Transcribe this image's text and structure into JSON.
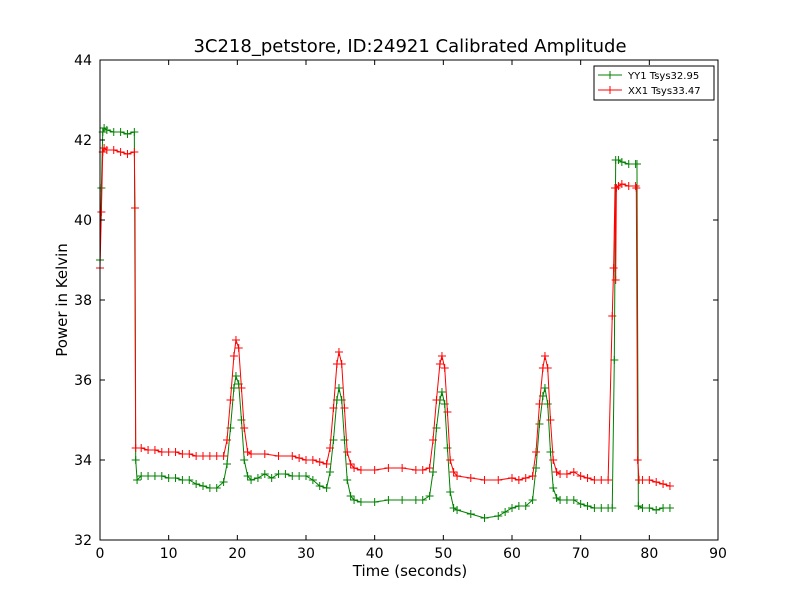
{
  "chart_data": {
    "type": "line",
    "title": "3C218_petstore, ID:24921 Calibrated Amplitude",
    "xlabel": "Time (seconds)",
    "ylabel": "Power in Kelvin",
    "xlim": [
      0,
      90
    ],
    "ylim": [
      32,
      44
    ],
    "xticks": [
      0,
      10,
      20,
      30,
      40,
      50,
      60,
      70,
      80,
      90
    ],
    "yticks": [
      32,
      34,
      36,
      38,
      40,
      42,
      44
    ],
    "grid": false,
    "legend_position": "top-right",
    "marker": "+",
    "series": [
      {
        "name": "YY1 Tsys32.95",
        "color": "#008000",
        "points": [
          [
            0.0,
            39.0
          ],
          [
            0.2,
            40.8
          ],
          [
            0.4,
            42.2
          ],
          [
            0.6,
            42.3
          ],
          [
            1,
            42.25
          ],
          [
            2,
            42.2
          ],
          [
            3,
            42.2
          ],
          [
            4,
            42.15
          ],
          [
            5,
            42.2
          ],
          [
            5.2,
            34.0
          ],
          [
            5.4,
            33.5
          ],
          [
            6,
            33.6
          ],
          [
            7,
            33.6
          ],
          [
            8,
            33.6
          ],
          [
            9,
            33.6
          ],
          [
            10,
            33.55
          ],
          [
            11,
            33.55
          ],
          [
            12,
            33.5
          ],
          [
            13,
            33.5
          ],
          [
            14,
            33.4
          ],
          [
            15,
            33.35
          ],
          [
            16,
            33.3
          ],
          [
            17,
            33.3
          ],
          [
            18,
            33.45
          ],
          [
            18.5,
            33.9
          ],
          [
            19,
            34.8
          ],
          [
            19.5,
            35.8
          ],
          [
            19.8,
            36.1
          ],
          [
            20.2,
            35.9
          ],
          [
            20.6,
            35.0
          ],
          [
            21,
            34.0
          ],
          [
            21.5,
            33.6
          ],
          [
            22,
            33.5
          ],
          [
            23,
            33.55
          ],
          [
            24,
            33.65
          ],
          [
            25,
            33.55
          ],
          [
            26,
            33.65
          ],
          [
            27,
            33.65
          ],
          [
            28,
            33.6
          ],
          [
            29,
            33.6
          ],
          [
            30,
            33.6
          ],
          [
            31,
            33.5
          ],
          [
            32,
            33.35
          ],
          [
            33,
            33.3
          ],
          [
            33.5,
            33.7
          ],
          [
            34,
            34.5
          ],
          [
            34.5,
            35.5
          ],
          [
            34.8,
            35.8
          ],
          [
            35.2,
            35.5
          ],
          [
            35.6,
            34.5
          ],
          [
            36,
            33.5
          ],
          [
            36.5,
            33.1
          ],
          [
            37,
            33.0
          ],
          [
            38,
            32.95
          ],
          [
            40,
            32.95
          ],
          [
            42,
            33.0
          ],
          [
            44,
            33.0
          ],
          [
            46,
            33.0
          ],
          [
            47,
            33.0
          ],
          [
            48,
            33.1
          ],
          [
            48.5,
            33.7
          ],
          [
            49,
            34.8
          ],
          [
            49.5,
            35.5
          ],
          [
            49.8,
            35.7
          ],
          [
            50.2,
            35.4
          ],
          [
            50.6,
            34.3
          ],
          [
            51,
            33.2
          ],
          [
            51.5,
            32.8
          ],
          [
            52,
            32.75
          ],
          [
            54,
            32.65
          ],
          [
            56,
            32.55
          ],
          [
            58,
            32.6
          ],
          [
            59,
            32.7
          ],
          [
            60,
            32.8
          ],
          [
            61,
            32.85
          ],
          [
            62,
            32.85
          ],
          [
            63,
            33.0
          ],
          [
            63.5,
            33.8
          ],
          [
            64,
            34.9
          ],
          [
            64.5,
            35.6
          ],
          [
            64.8,
            35.8
          ],
          [
            65.2,
            35.4
          ],
          [
            65.6,
            34.2
          ],
          [
            66,
            33.3
          ],
          [
            66.5,
            33.05
          ],
          [
            67,
            33.0
          ],
          [
            68,
            33.0
          ],
          [
            69,
            33.0
          ],
          [
            70,
            32.9
          ],
          [
            71,
            32.85
          ],
          [
            72,
            32.8
          ],
          [
            73,
            32.8
          ],
          [
            74,
            32.8
          ],
          [
            74.6,
            32.8
          ],
          [
            74.9,
            36.5
          ],
          [
            75.1,
            41.5
          ],
          [
            75.5,
            41.5
          ],
          [
            76,
            41.45
          ],
          [
            77,
            41.4
          ],
          [
            78,
            41.4
          ],
          [
            78.2,
            41.4
          ],
          [
            78.4,
            32.85
          ],
          [
            79,
            32.8
          ],
          [
            80,
            32.8
          ],
          [
            81,
            32.75
          ],
          [
            82,
            32.8
          ],
          [
            83,
            32.8
          ]
        ]
      },
      {
        "name": "XX1 Tsys33.47",
        "color": "#ff0000",
        "points": [
          [
            0.0,
            38.8
          ],
          [
            0.2,
            40.2
          ],
          [
            0.4,
            41.7
          ],
          [
            0.6,
            41.8
          ],
          [
            1,
            41.75
          ],
          [
            2,
            41.75
          ],
          [
            3,
            41.7
          ],
          [
            4,
            41.65
          ],
          [
            5,
            41.7
          ],
          [
            5.1,
            40.3
          ],
          [
            5.2,
            34.3
          ],
          [
            6,
            34.3
          ],
          [
            7,
            34.25
          ],
          [
            8,
            34.25
          ],
          [
            9,
            34.2
          ],
          [
            10,
            34.2
          ],
          [
            11,
            34.2
          ],
          [
            12,
            34.15
          ],
          [
            13,
            34.15
          ],
          [
            14,
            34.1
          ],
          [
            15,
            34.1
          ],
          [
            16,
            34.1
          ],
          [
            17,
            34.1
          ],
          [
            18,
            34.1
          ],
          [
            18.5,
            34.5
          ],
          [
            19,
            35.5
          ],
          [
            19.5,
            36.6
          ],
          [
            19.8,
            37.0
          ],
          [
            20.2,
            36.8
          ],
          [
            20.6,
            35.8
          ],
          [
            21,
            34.8
          ],
          [
            21.5,
            34.2
          ],
          [
            22,
            34.15
          ],
          [
            24,
            34.15
          ],
          [
            26,
            34.1
          ],
          [
            28,
            34.1
          ],
          [
            29,
            34.05
          ],
          [
            30,
            34.0
          ],
          [
            31,
            34.0
          ],
          [
            32,
            33.95
          ],
          [
            33,
            33.9
          ],
          [
            33.5,
            34.3
          ],
          [
            34,
            35.3
          ],
          [
            34.5,
            36.4
          ],
          [
            34.8,
            36.7
          ],
          [
            35.2,
            36.4
          ],
          [
            35.6,
            35.3
          ],
          [
            36,
            34.2
          ],
          [
            36.5,
            33.9
          ],
          [
            37,
            33.8
          ],
          [
            38,
            33.75
          ],
          [
            40,
            33.75
          ],
          [
            42,
            33.8
          ],
          [
            44,
            33.8
          ],
          [
            46,
            33.75
          ],
          [
            47,
            33.75
          ],
          [
            48,
            33.8
          ],
          [
            48.5,
            34.5
          ],
          [
            49,
            35.5
          ],
          [
            49.5,
            36.4
          ],
          [
            49.8,
            36.6
          ],
          [
            50.2,
            36.3
          ],
          [
            50.6,
            35.2
          ],
          [
            51,
            34.0
          ],
          [
            51.5,
            33.7
          ],
          [
            52,
            33.6
          ],
          [
            54,
            33.55
          ],
          [
            56,
            33.5
          ],
          [
            58,
            33.5
          ],
          [
            60,
            33.55
          ],
          [
            61,
            33.5
          ],
          [
            62,
            33.55
          ],
          [
            63,
            33.6
          ],
          [
            63.5,
            34.2
          ],
          [
            64,
            35.4
          ],
          [
            64.5,
            36.3
          ],
          [
            64.8,
            36.6
          ],
          [
            65.2,
            36.3
          ],
          [
            65.6,
            35.0
          ],
          [
            66,
            34.0
          ],
          [
            66.5,
            33.7
          ],
          [
            67,
            33.65
          ],
          [
            68,
            33.65
          ],
          [
            69,
            33.7
          ],
          [
            70,
            33.6
          ],
          [
            71,
            33.55
          ],
          [
            72,
            33.5
          ],
          [
            73,
            33.5
          ],
          [
            74,
            33.5
          ],
          [
            74.6,
            37.6
          ],
          [
            74.8,
            38.8
          ],
          [
            75.0,
            40.8
          ],
          [
            75.1,
            38.5
          ],
          [
            75.2,
            40.8
          ],
          [
            75.5,
            40.85
          ],
          [
            76,
            40.9
          ],
          [
            77,
            40.85
          ],
          [
            78,
            40.85
          ],
          [
            78.1,
            40.8
          ],
          [
            78.3,
            34.0
          ],
          [
            78.5,
            33.5
          ],
          [
            79,
            33.5
          ],
          [
            80,
            33.5
          ],
          [
            81,
            33.45
          ],
          [
            82,
            33.4
          ],
          [
            83,
            33.35
          ]
        ]
      }
    ]
  }
}
